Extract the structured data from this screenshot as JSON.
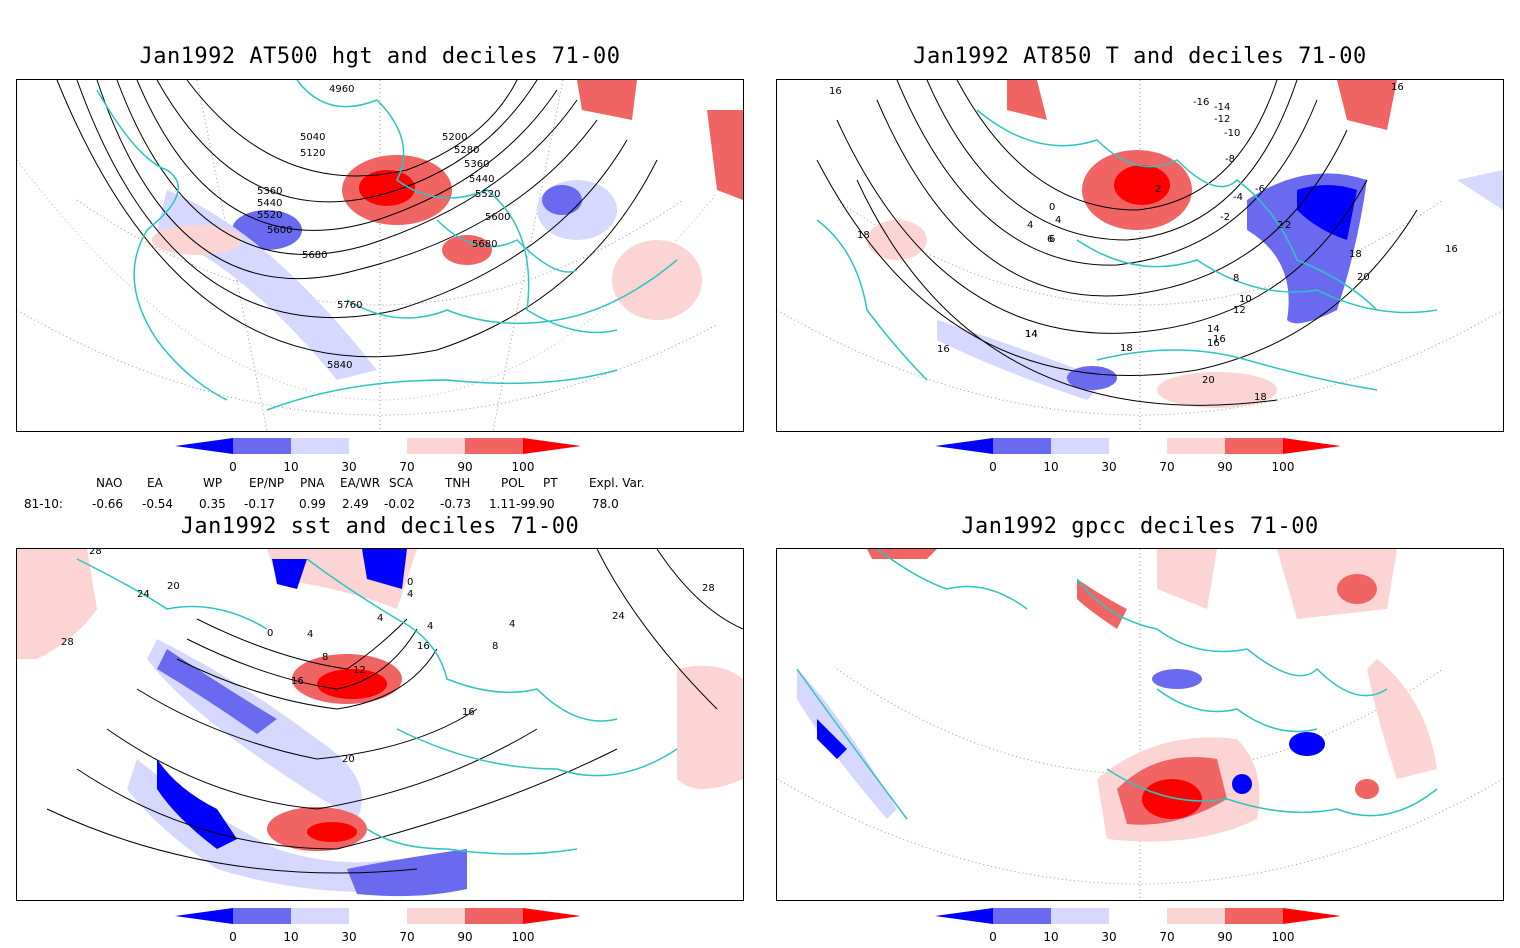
{
  "titles": {
    "p1": "Jan1992 AT500 hgt and deciles 71-00",
    "p2": "Jan1992 AT850 T and deciles 71-00",
    "p3": "Jan1992 sst and deciles 71-00",
    "p4": "Jan1992 gpcc deciles 71-00"
  },
  "colorbar": {
    "labels": [
      "0",
      "10",
      "30",
      "70",
      "90",
      "100"
    ],
    "colors": [
      "#0000ff",
      "#6a6af0",
      "#d6d8ff",
      "#ffffff",
      "#fcd4d4",
      "#f06464",
      "#ff0000"
    ]
  },
  "indices": {
    "headers": [
      "NAO",
      "EA",
      "WP",
      "EP/NP",
      "PNA",
      "EA/WR",
      "SCA",
      "TNH",
      "POL",
      "PT",
      "Expl. Var."
    ],
    "row_label": "81-10:",
    "values": [
      "-0.66",
      "-0.54",
      "0.35",
      "-0.17",
      "0.99",
      "2.49",
      "-0.02",
      "-0.73",
      "1.11",
      "-99.90",
      "78.0"
    ]
  },
  "chart_data": [
    {
      "type": "heatmap",
      "title": "Jan1992 AT500 hgt and deciles 71-00",
      "contour_labels": [
        "4960",
        "5040",
        "5120",
        "5200",
        "5280",
        "5360",
        "5440",
        "5520",
        "5600",
        "5680",
        "5760",
        "5840",
        "5360",
        "5440",
        "5520",
        "5600",
        "5680"
      ],
      "colorbar_levels": [
        0,
        10,
        30,
        70,
        90,
        100
      ]
    },
    {
      "type": "heatmap",
      "title": "Jan1992 AT850 T and deciles 71-00",
      "contour_labels": [
        "16",
        "18",
        "16",
        "14",
        "14",
        "16",
        "18",
        "20",
        "18",
        "2",
        "0",
        "-2",
        "-4",
        "-6",
        "2",
        "4",
        "6",
        "8",
        "10",
        "12",
        "14",
        "16",
        "-10",
        "-12",
        "-14",
        "-16",
        "-8",
        "16",
        "4",
        "6",
        "2",
        "20",
        "18",
        "16"
      ],
      "colorbar_levels": [
        0,
        10,
        30,
        70,
        90,
        100
      ]
    },
    {
      "type": "heatmap",
      "title": "Jan1992 sst and deciles 71-00",
      "contour_labels": [
        "28",
        "24",
        "20",
        "28",
        "0",
        "4",
        "8",
        "12",
        "16",
        "20",
        "16",
        "4",
        "0",
        "4",
        "8",
        "16",
        "24",
        "28",
        "4",
        "4"
      ],
      "colorbar_levels": [
        0,
        10,
        30,
        70,
        90,
        100
      ]
    },
    {
      "type": "heatmap",
      "title": "Jan1992 gpcc deciles 71-00",
      "contour_labels": [],
      "colorbar_levels": [
        0,
        10,
        30,
        70,
        90,
        100
      ]
    }
  ]
}
